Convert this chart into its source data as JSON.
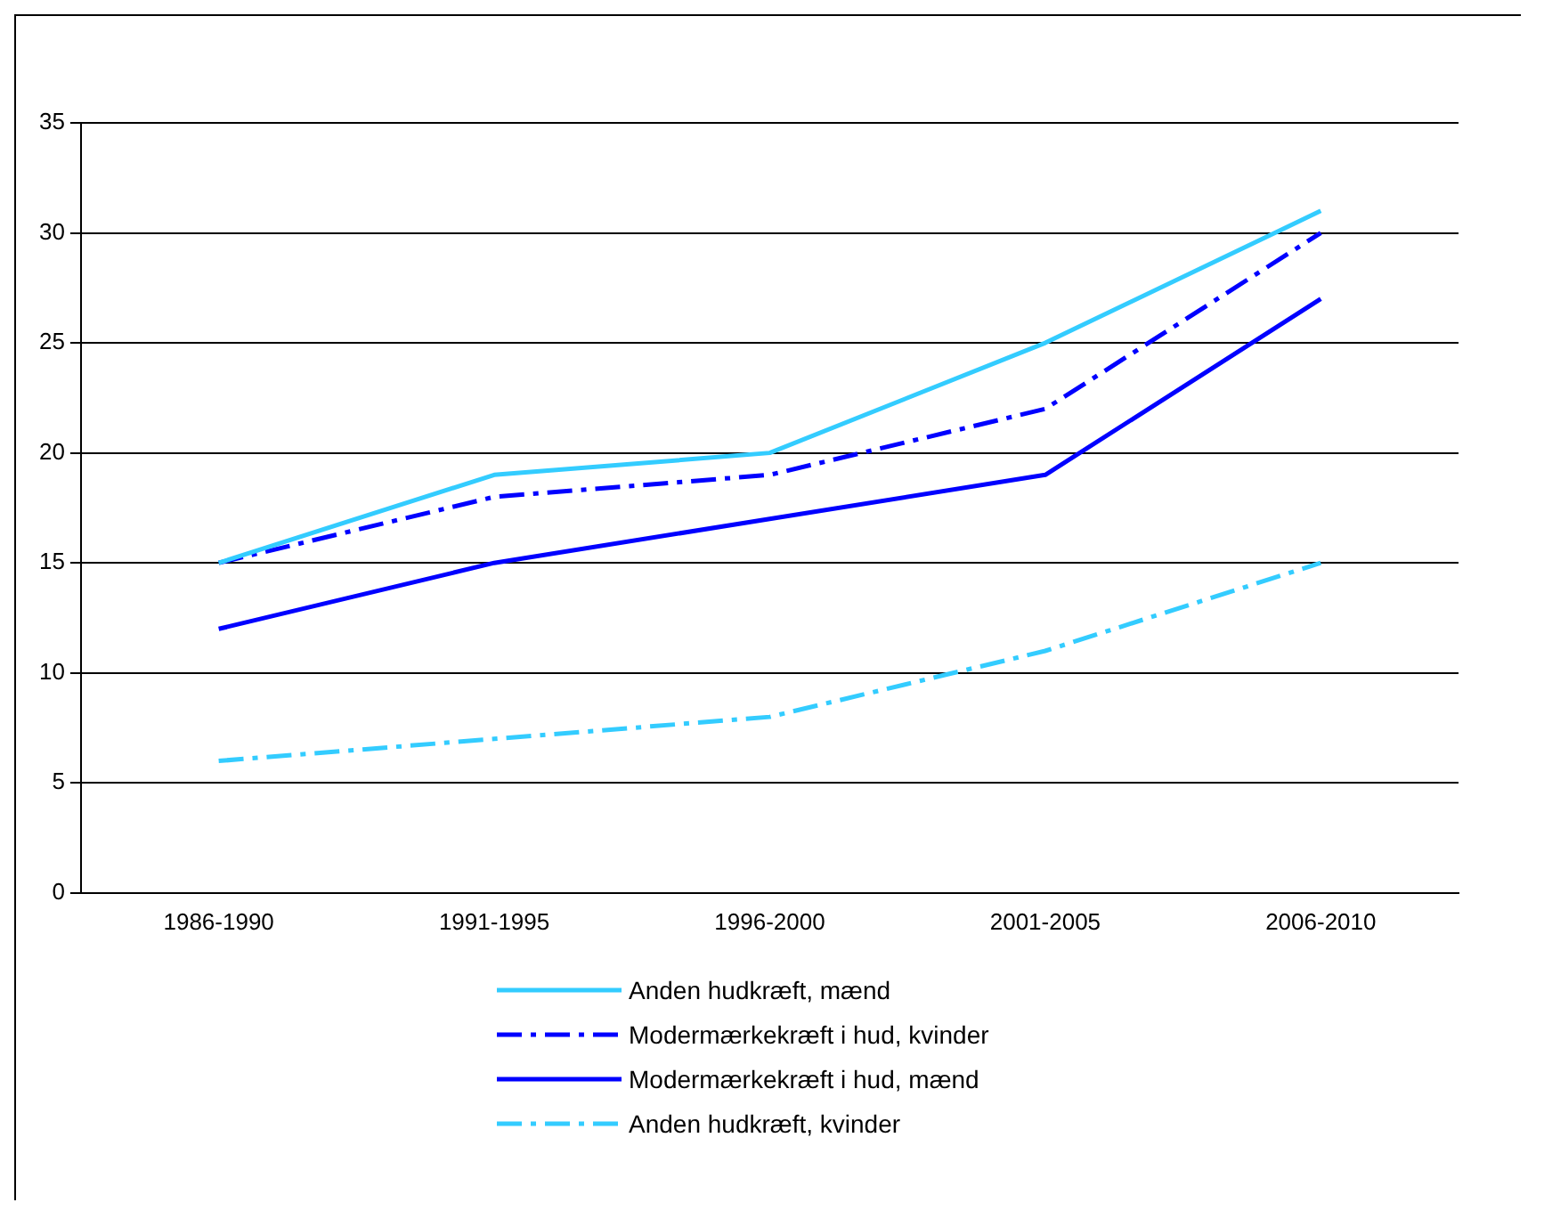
{
  "chart_data": {
    "type": "line",
    "categories": [
      "1986-1990",
      "1991-1995",
      "1996-2000",
      "2001-2005",
      "2006-2010"
    ],
    "series": [
      {
        "name": "Anden hudkræft, mænd",
        "color": "#33ccff",
        "line_style": "solid",
        "values": [
          15,
          19,
          20,
          25,
          31
        ]
      },
      {
        "name": "Modermærkekræft i hud, kvinder",
        "color": "#0000ff",
        "line_style": "dashed",
        "values": [
          15,
          18,
          19,
          22,
          30
        ]
      },
      {
        "name": "Modermærkekræft i hud, mænd",
        "color": "#0000ff",
        "line_style": "solid",
        "values": [
          12,
          15,
          17,
          19,
          27
        ]
      },
      {
        "name": "Anden hudkræft, kvinder",
        "color": "#33ccff",
        "line_style": "dashed",
        "values": [
          6,
          7,
          8,
          11,
          15
        ]
      }
    ],
    "ylim": [
      0,
      35
    ],
    "yticks": [
      0,
      5,
      10,
      15,
      20,
      25,
      30,
      35
    ],
    "grid": "y",
    "legend": "bottom",
    "marker": "none"
  }
}
